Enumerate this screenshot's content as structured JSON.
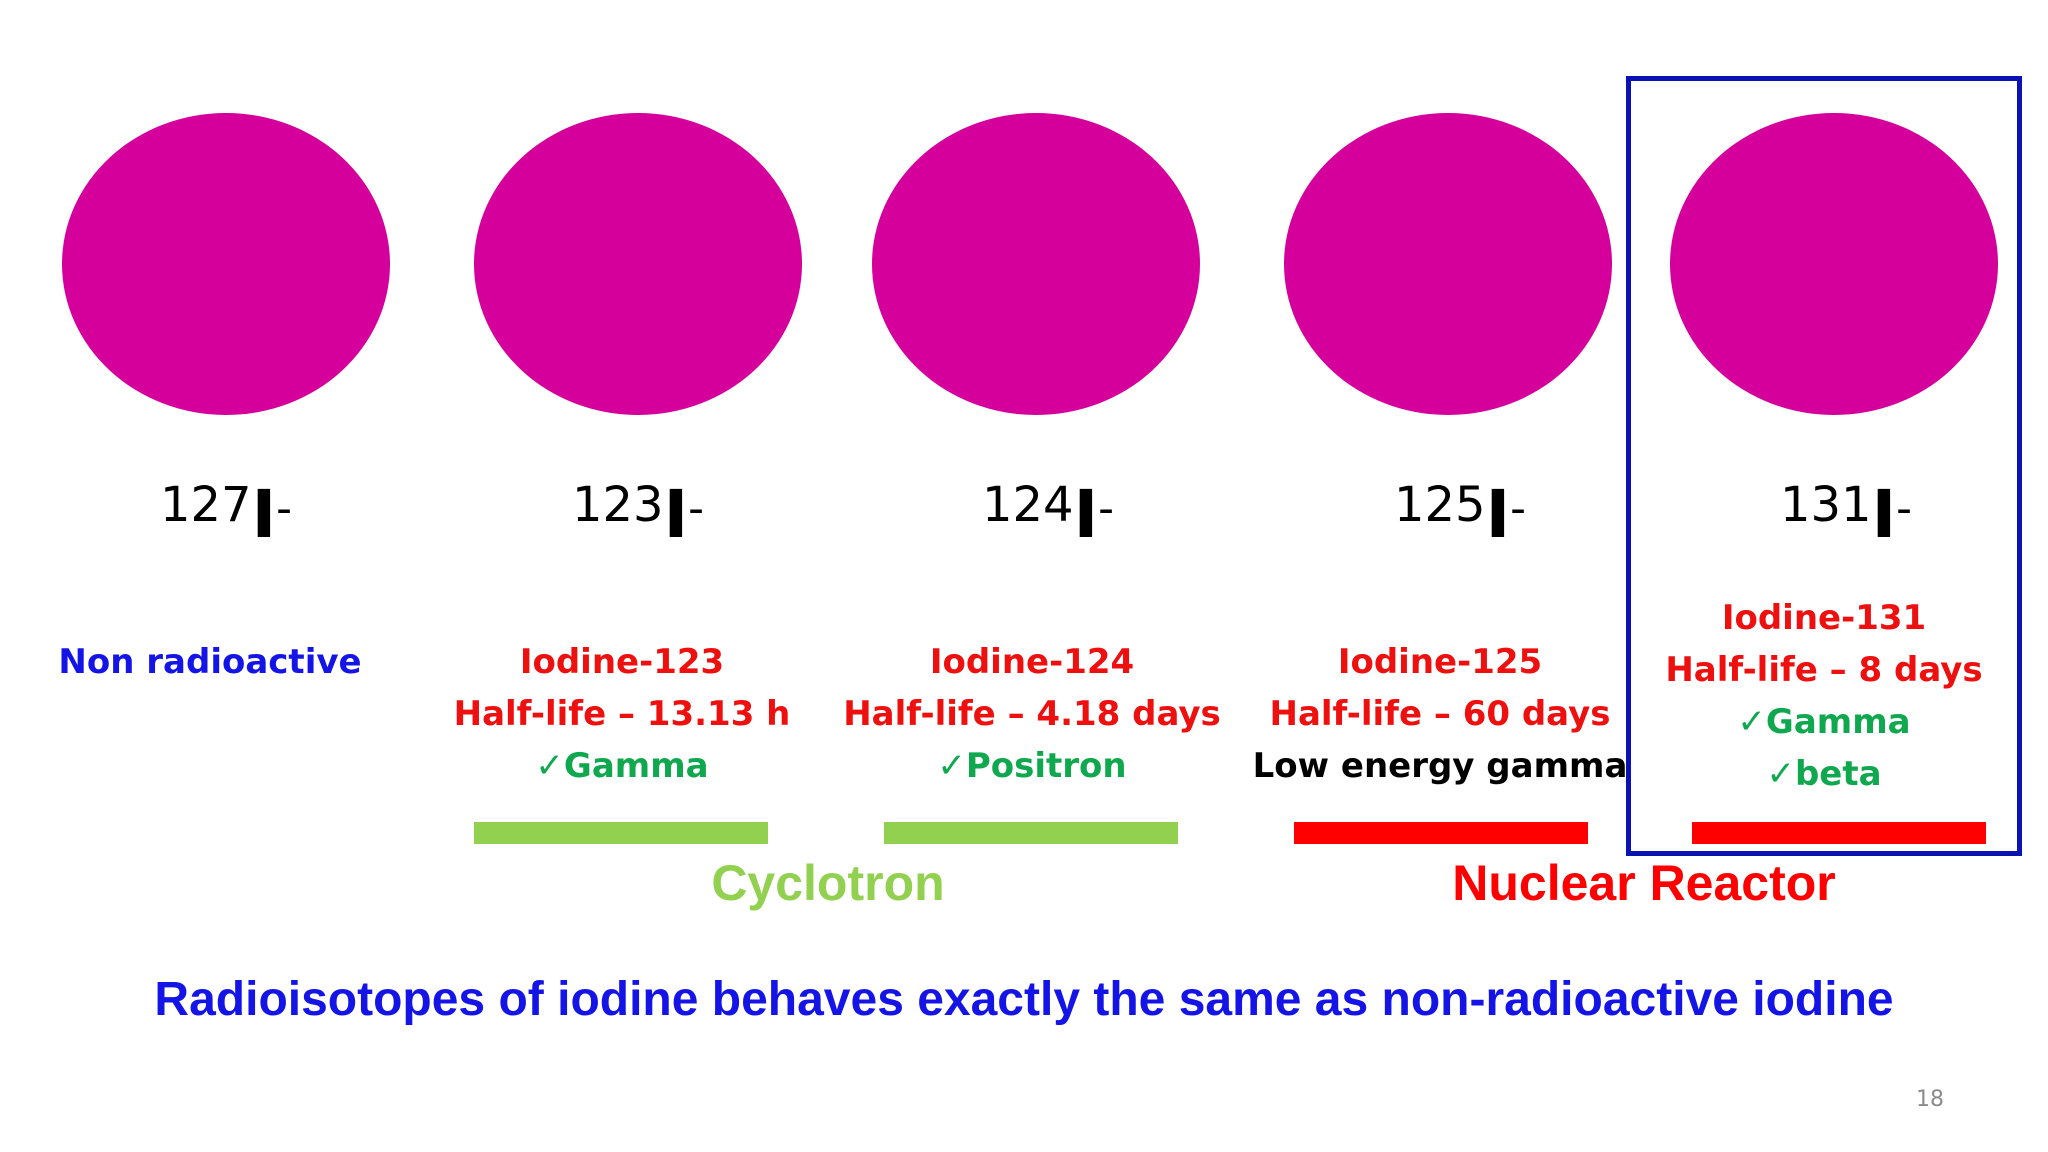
{
  "isotopes": [
    {
      "mass": "127",
      "symbol": "I",
      "charge": "-",
      "lines": [
        {
          "text": "Non radioactive",
          "color": "blue"
        }
      ]
    },
    {
      "mass": "123",
      "symbol": "I",
      "charge": "-",
      "lines": [
        {
          "text": "Iodine-123",
          "color": "red"
        },
        {
          "text": "Half-life – 13.13 h",
          "color": "red"
        },
        {
          "check": "✓",
          "text": "Gamma",
          "color": "green"
        }
      ]
    },
    {
      "mass": "124",
      "symbol": "I",
      "charge": "-",
      "lines": [
        {
          "text": "Iodine-124",
          "color": "red"
        },
        {
          "text": "Half-life – 4.18 days",
          "color": "red"
        },
        {
          "check": "✓",
          "text": "Positron",
          "color": "green"
        }
      ]
    },
    {
      "mass": "125",
      "symbol": "I",
      "charge": "-",
      "lines": [
        {
          "text": "Iodine-125",
          "color": "red"
        },
        {
          "text": "Half-life – 60 days",
          "color": "red"
        },
        {
          "text": "Low energy gamma",
          "color": "black"
        }
      ]
    },
    {
      "mass": "131",
      "symbol": "I",
      "charge": "-",
      "lines": [
        {
          "text": "Iodine-131",
          "color": "red"
        },
        {
          "text": "Half-life – 8 days",
          "color": "red"
        },
        {
          "check": "✓",
          "text": "Gamma",
          "color": "green"
        },
        {
          "check": "✓",
          "text": "beta",
          "color": "green"
        }
      ]
    }
  ],
  "groups": {
    "cyclotron": "Cyclotron",
    "reactor": "Nuclear Reactor"
  },
  "statement": "Radioisotopes of iodine behaves exactly the same as non-radioactive iodine",
  "page_number": "18",
  "colors": {
    "circle": "#d5009b",
    "cyclotron": "#92d050",
    "reactor": "#ff0000",
    "highlight_box": "#0b12b4",
    "statement": "#1414e6"
  }
}
